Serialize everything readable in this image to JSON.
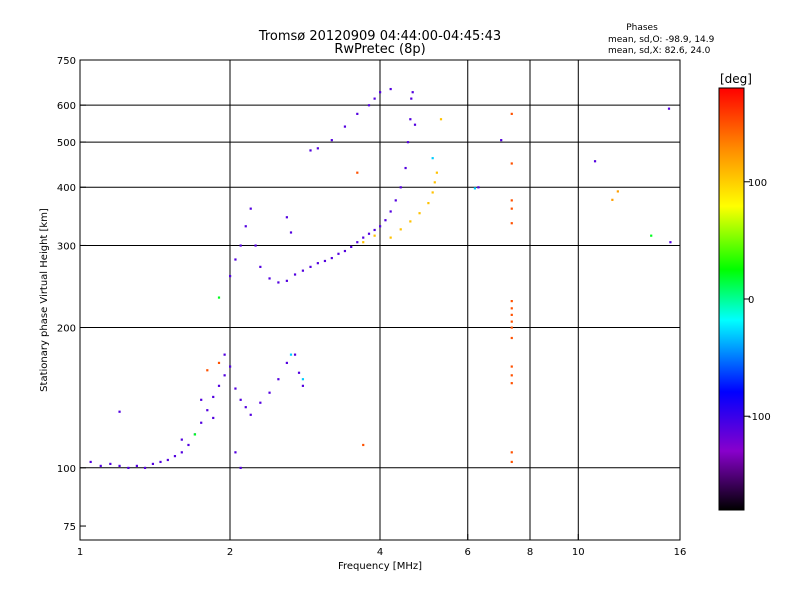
{
  "chart_data": {
    "type": "scatter",
    "title": "Tromsø 20120909 04:44:00-04:45:43",
    "subtitle": "RwPretec (8p)",
    "info": {
      "heading": "Phases",
      "line1": "mean, sd,O: -98.9, 14.9",
      "line2": "mean, sd,X:  82.6, 24.0"
    },
    "xlabel": "Frequency [MHz]",
    "ylabel": "Stationary phase Virtual Height [km]",
    "x_scale": "log",
    "y_scale": "log",
    "xlim": [
      1,
      16
    ],
    "ylim": [
      70,
      750
    ],
    "x_ticks": [
      1,
      2,
      4,
      6,
      8,
      10,
      16
    ],
    "x_tick_labels": [
      "1",
      "2",
      "4",
      "6",
      "8",
      "10",
      "16"
    ],
    "x_grid": [
      2,
      4,
      6,
      8,
      10
    ],
    "y_ticks": [
      75,
      100,
      200,
      300,
      400,
      500,
      600,
      750
    ],
    "y_tick_labels": [
      "75",
      "100",
      "200",
      "300",
      "400",
      "500",
      "600",
      "750"
    ],
    "y_grid": [
      100,
      200,
      300,
      400,
      500,
      600
    ],
    "grid": true,
    "colorbar": {
      "label": "[deg]",
      "range": [
        -180,
        180
      ],
      "ticks": [
        100,
        0,
        -100
      ],
      "tick_labels": [
        "100",
        "0",
        "-100"
      ],
      "colors": [
        "#ff0000",
        "#ff8800",
        "#ffff00",
        "#00ff00",
        "#00ffff",
        "#0000ff",
        "#8800cc",
        "#000000"
      ]
    },
    "series": [
      {
        "phase": -110,
        "points": [
          [
            1.05,
            103
          ],
          [
            1.1,
            101
          ],
          [
            1.15,
            102
          ],
          [
            1.2,
            101
          ],
          [
            1.25,
            100
          ],
          [
            1.3,
            101
          ],
          [
            1.35,
            100
          ],
          [
            1.4,
            102
          ],
          [
            1.45,
            103
          ],
          [
            1.5,
            104
          ],
          [
            1.55,
            106
          ],
          [
            1.6,
            108
          ],
          [
            1.65,
            112
          ],
          [
            1.7,
            118
          ],
          [
            1.75,
            125
          ],
          [
            1.8,
            133
          ],
          [
            1.85,
            142
          ],
          [
            1.9,
            150
          ],
          [
            1.95,
            158
          ],
          [
            2.0,
            165
          ],
          [
            2.05,
            148
          ],
          [
            2.1,
            140
          ],
          [
            2.15,
            135
          ],
          [
            2.2,
            130
          ],
          [
            2.3,
            138
          ],
          [
            2.4,
            145
          ],
          [
            2.5,
            155
          ],
          [
            2.6,
            168
          ],
          [
            2.7,
            175
          ],
          [
            2.75,
            160
          ],
          [
            2.8,
            150
          ],
          [
            1.2,
            132
          ],
          [
            1.6,
            115
          ],
          [
            1.75,
            140
          ],
          [
            1.85,
            128
          ],
          [
            1.95,
            175
          ],
          [
            2.05,
            108
          ],
          [
            2.1,
            100
          ],
          [
            2.0,
            258
          ],
          [
            2.05,
            280
          ],
          [
            2.1,
            300
          ],
          [
            2.15,
            330
          ],
          [
            2.2,
            360
          ],
          [
            2.25,
            300
          ],
          [
            2.3,
            270
          ],
          [
            2.4,
            255
          ],
          [
            2.5,
            250
          ],
          [
            2.6,
            252
          ],
          [
            2.7,
            260
          ],
          [
            2.8,
            265
          ],
          [
            2.9,
            270
          ],
          [
            3.0,
            275
          ],
          [
            3.1,
            278
          ],
          [
            3.2,
            282
          ],
          [
            3.3,
            288
          ],
          [
            3.4,
            292
          ],
          [
            3.5,
            298
          ],
          [
            3.6,
            305
          ],
          [
            3.7,
            312
          ],
          [
            3.8,
            318
          ],
          [
            3.9,
            324
          ],
          [
            4.0,
            330
          ],
          [
            4.1,
            340
          ],
          [
            4.2,
            355
          ],
          [
            4.3,
            375
          ],
          [
            4.4,
            400
          ],
          [
            4.5,
            440
          ],
          [
            4.55,
            500
          ],
          [
            4.6,
            560
          ],
          [
            4.62,
            620
          ],
          [
            4.65,
            640
          ],
          [
            2.6,
            345
          ],
          [
            2.65,
            320
          ],
          [
            3.0,
            485
          ],
          [
            3.2,
            505
          ],
          [
            3.4,
            540
          ],
          [
            3.6,
            575
          ],
          [
            3.8,
            600
          ],
          [
            3.9,
            620
          ],
          [
            4.0,
            640
          ],
          [
            4.2,
            650
          ],
          [
            2.9,
            480
          ],
          [
            4.7,
            545
          ],
          [
            7.0,
            505
          ],
          [
            6.3,
            400
          ],
          [
            10.8,
            455
          ],
          [
            15.2,
            590
          ],
          [
            15.3,
            305
          ]
        ]
      },
      {
        "phase": 105,
        "points": [
          [
            4.2,
            312
          ],
          [
            4.4,
            325
          ],
          [
            4.6,
            338
          ],
          [
            4.8,
            352
          ],
          [
            5.0,
            370
          ],
          [
            5.1,
            390
          ],
          [
            5.15,
            410
          ],
          [
            5.2,
            430
          ],
          [
            3.7,
            305
          ],
          [
            3.9,
            315
          ],
          [
            5.3,
            560
          ]
        ]
      },
      {
        "phase": 150,
        "points": [
          [
            7.35,
            575
          ],
          [
            7.35,
            450
          ],
          [
            7.35,
            375
          ],
          [
            7.35,
            360
          ],
          [
            7.35,
            335
          ],
          [
            7.35,
            228
          ],
          [
            7.35,
            220
          ],
          [
            7.35,
            213
          ],
          [
            7.35,
            206
          ],
          [
            7.35,
            200
          ],
          [
            7.35,
            190
          ],
          [
            7.35,
            165
          ],
          [
            7.35,
            158
          ],
          [
            7.35,
            152
          ],
          [
            7.35,
            108
          ],
          [
            7.35,
            103
          ],
          [
            1.8,
            162
          ],
          [
            1.9,
            168
          ],
          [
            3.7,
            112
          ],
          [
            3.6,
            430
          ]
        ]
      },
      {
        "phase": 20,
        "points": [
          [
            14.0,
            315
          ],
          [
            1.9,
            232
          ],
          [
            1.7,
            118
          ]
        ]
      },
      {
        "phase": -30,
        "points": [
          [
            2.65,
            175
          ],
          [
            2.8,
            155
          ],
          [
            5.1,
            462
          ],
          [
            6.2,
            398
          ]
        ]
      },
      {
        "phase": 120,
        "points": [
          [
            11.7,
            376
          ],
          [
            12.0,
            392
          ]
        ]
      }
    ]
  }
}
